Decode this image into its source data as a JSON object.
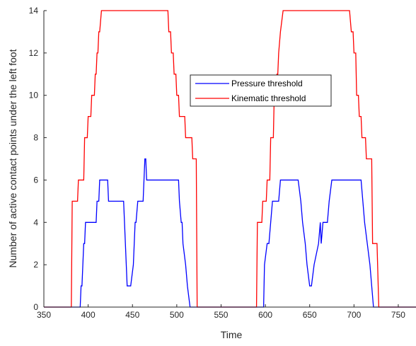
{
  "chart_data": {
    "type": "line",
    "xlabel": "Time",
    "ylabel": "Number of active contact points under the left foot",
    "xlim": [
      350,
      770
    ],
    "ylim": [
      0,
      14
    ],
    "xticks": [
      350,
      400,
      450,
      500,
      550,
      600,
      650,
      700,
      750
    ],
    "yticks": [
      0,
      2,
      4,
      6,
      8,
      10,
      12,
      14
    ],
    "grid": false,
    "legend_position": "center",
    "series": [
      {
        "name": "Pressure threshold",
        "color": "#0000ff",
        "x": [
          350,
          391,
          392,
          393,
          394,
          394,
          395,
          395,
          396,
          396,
          397,
          397,
          398,
          398,
          409,
          409,
          410,
          410,
          412,
          412,
          413,
          413,
          422,
          422,
          423,
          423,
          426,
          426,
          427,
          427,
          440,
          440,
          441,
          441,
          442,
          442,
          443,
          443,
          444,
          444,
          448,
          448,
          451,
          451,
          452,
          452,
          453,
          453,
          454,
          454,
          456,
          456,
          457,
          457,
          462,
          462,
          463,
          463,
          464,
          464,
          465,
          465,
          466,
          466,
          470,
          470,
          471,
          471,
          502,
          502,
          503,
          503,
          505,
          505,
          506,
          506,
          507,
          507,
          510,
          510,
          512,
          512,
          515,
          515,
          517,
          517,
          518,
          598,
          599,
          599,
          602,
          602,
          604,
          604,
          606,
          606,
          608,
          608,
          615,
          615,
          617,
          617,
          618,
          618,
          637,
          637,
          640,
          640,
          642,
          642,
          645,
          645,
          647,
          647,
          650,
          650,
          652,
          652,
          655,
          655,
          660,
          660,
          662,
          662,
          663,
          665,
          670,
          670,
          672,
          672,
          675,
          675,
          676,
          676,
          708,
          708,
          710,
          710,
          712,
          712,
          715,
          715,
          718,
          718,
          720,
          720,
          722,
          770
        ],
        "y": [
          0,
          0,
          1,
          1,
          2,
          2,
          3,
          3,
          3,
          3,
          4,
          4,
          4,
          4,
          4,
          4,
          5,
          5,
          5,
          5,
          6,
          6,
          6,
          6,
          5,
          5,
          5,
          5,
          5,
          5,
          5,
          5,
          4,
          4,
          3,
          3,
          2,
          2,
          1,
          1,
          1,
          1,
          2,
          2,
          3,
          3,
          4,
          4,
          4,
          4,
          5,
          5,
          5,
          5,
          5,
          5,
          6,
          6,
          7,
          7,
          7,
          7,
          6,
          6,
          6,
          6,
          6,
          6,
          6,
          6,
          5,
          5,
          4,
          4,
          4,
          4,
          3,
          3,
          2,
          2,
          1,
          1,
          0,
          0,
          0,
          0,
          0,
          0,
          2,
          2,
          3,
          3,
          3,
          3,
          4,
          4,
          5,
          5,
          5,
          5,
          6,
          6,
          6,
          6,
          6,
          6,
          5,
          5,
          4,
          4,
          3,
          3,
          2,
          2,
          1,
          1,
          1,
          1,
          2,
          2,
          3,
          3,
          4,
          4,
          3,
          4,
          4,
          4,
          5,
          5,
          6,
          6,
          6,
          6,
          6,
          6,
          5,
          5,
          4,
          4,
          3,
          3,
          2,
          2,
          1,
          1,
          0,
          0
        ]
      },
      {
        "name": "Kinematic threshold",
        "color": "#ff0000",
        "x": [
          350,
          381,
          382,
          388,
          389,
          395,
          396,
          399,
          400,
          403,
          404,
          407,
          408,
          409,
          410,
          411,
          412,
          413,
          415,
          490,
          491,
          493,
          494,
          496,
          497,
          499,
          500,
          502,
          503,
          509,
          510,
          517,
          518,
          522,
          523,
          590,
          591,
          596,
          597,
          601,
          602,
          605,
          606,
          609,
          610,
          612,
          613,
          614,
          615,
          617,
          620,
          695,
          697,
          699,
          700,
          702,
          703,
          705,
          706,
          708,
          709,
          713,
          714,
          720,
          721,
          726,
          728,
          770
        ],
        "y": [
          0,
          0,
          5,
          5,
          6,
          6,
          8,
          8,
          9,
          9,
          10,
          10,
          11,
          11,
          12,
          12,
          13,
          13,
          14,
          14,
          13,
          13,
          12,
          12,
          11,
          11,
          10,
          10,
          9,
          9,
          8,
          8,
          7,
          7,
          0,
          0,
          4,
          4,
          5,
          5,
          6,
          6,
          8,
          8,
          10,
          10,
          11,
          11,
          12,
          13,
          14,
          14,
          13,
          13,
          12,
          12,
          10,
          10,
          9,
          9,
          8,
          8,
          7,
          7,
          3,
          3,
          0,
          0
        ]
      }
    ]
  }
}
